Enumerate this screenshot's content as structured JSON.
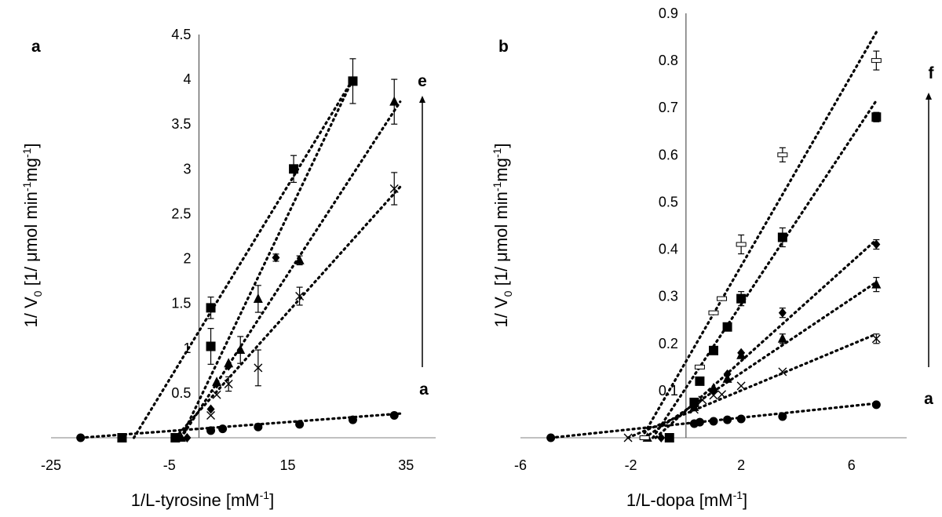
{
  "chart_data": [
    {
      "type": "scatter",
      "panel_label": "a",
      "xlabel": "1/L-tyrosine [mM",
      "xlabel_sup": "-1",
      "xlabel_end": "]",
      "ylabel_parts": [
        "1/ V",
        "0",
        " [1/ μmol min",
        "-1",
        "mg",
        "-1",
        "]"
      ],
      "xlim": [
        -25,
        40
      ],
      "ylim": [
        0,
        4.5
      ],
      "xticks": [
        -25,
        -5,
        15,
        35
      ],
      "xtick_labels": [
        "-25",
        "-5",
        "15",
        "35"
      ],
      "yticks": [
        0.5,
        1,
        1.5,
        2,
        2.5,
        3,
        3.5,
        4,
        4.5
      ],
      "ytick_labels": [
        "0.5",
        "1",
        "1.5",
        "2",
        "2.5",
        "3",
        "3.5",
        "4",
        "4.5"
      ],
      "series_start_label": "a",
      "series_end_label": "e",
      "series": [
        {
          "marker": "circle",
          "points": [
            [
              -20,
              0
            ],
            [
              2,
              0.08
            ],
            [
              4,
              0.1
            ],
            [
              10,
              0.12
            ],
            [
              17,
              0.15
            ],
            [
              26,
              0.2
            ],
            [
              33,
              0.25
            ]
          ],
          "errors": [
            0,
            0,
            0,
            0,
            0,
            0,
            0
          ],
          "line": [
            [
              -20,
              0
            ],
            [
              34,
              0.27
            ]
          ]
        },
        {
          "marker": "x",
          "points": [
            [
              -4,
              0
            ],
            [
              2,
              0.25
            ],
            [
              3,
              0.48
            ],
            [
              5,
              0.6
            ],
            [
              10,
              0.78
            ],
            [
              17,
              1.58
            ],
            [
              33,
              2.78
            ]
          ],
          "errors": [
            0,
            0,
            0,
            0.08,
            0.2,
            0.1,
            0.18
          ],
          "line": [
            [
              -4,
              0
            ],
            [
              34,
              2.8
            ]
          ]
        },
        {
          "marker": "triangle",
          "points": [
            [
              -3,
              0
            ],
            [
              3,
              0.62
            ],
            [
              5,
              0.83
            ],
            [
              7,
              0.98
            ],
            [
              10,
              1.55
            ],
            [
              17,
              1.98
            ],
            [
              33,
              3.75
            ]
          ],
          "errors": [
            0,
            0,
            0,
            0.15,
            0.15,
            0.05,
            0.25
          ],
          "line": [
            [
              -3,
              0
            ],
            [
              34,
              3.75
            ]
          ]
        },
        {
          "marker": "diamond",
          "points": [
            [
              -2,
              0
            ],
            [
              2,
              0.32
            ],
            [
              3,
              0.6
            ],
            [
              5,
              0.8
            ],
            [
              13,
              2.01
            ]
          ],
          "errors": [
            0,
            0,
            0,
            0,
            0.04
          ],
          "line": [
            [
              -3,
              0
            ],
            [
              26,
              4.0
            ]
          ]
        },
        {
          "marker": "square",
          "points": [
            [
              -13,
              0
            ],
            [
              -4,
              0
            ],
            [
              2,
              1.02
            ],
            [
              2,
              1.45
            ],
            [
              16,
              3.0
            ],
            [
              26,
              3.98
            ]
          ],
          "errors": [
            0,
            0,
            0.2,
            0.12,
            0.15,
            0.25
          ],
          "line": [
            [
              -11,
              0
            ],
            [
              26,
              4.0
            ]
          ]
        }
      ]
    },
    {
      "type": "scatter",
      "panel_label": "b",
      "xlabel": "1/L-dopa [mM",
      "xlabel_sup": "-1",
      "xlabel_end": "]",
      "ylabel_parts": [
        "1/ V",
        "0",
        " [1/ μmol min",
        "-1",
        "mg",
        "-1",
        "]"
      ],
      "xlim": [
        -6,
        8
      ],
      "ylim": [
        0,
        0.9
      ],
      "xticks": [
        -6,
        -2,
        2,
        6
      ],
      "xtick_labels": [
        "-6",
        "-2",
        "2",
        "6"
      ],
      "yticks": [
        0.1,
        0.2,
        0.3,
        0.4,
        0.5,
        0.6,
        0.7,
        0.8,
        0.9
      ],
      "ytick_labels": [
        "0.1",
        "0.2",
        "0.3",
        "0.4",
        "0.5",
        "0.6",
        "0.7",
        "0.8",
        "0.9"
      ],
      "series_start_label": "a",
      "series_end_label": "f",
      "series": [
        {
          "marker": "circle",
          "points": [
            [
              -4.9,
              0
            ],
            [
              0.3,
              0.03
            ],
            [
              0.5,
              0.033
            ],
            [
              1,
              0.035
            ],
            [
              1.5,
              0.038
            ],
            [
              2,
              0.04
            ],
            [
              3.5,
              0.045
            ],
            [
              6.9,
              0.07
            ]
          ],
          "errors": [
            0,
            0,
            0,
            0,
            0,
            0,
            0,
            0
          ],
          "line": [
            [
              -4.9,
              0
            ],
            [
              6.9,
              0.073
            ]
          ]
        },
        {
          "marker": "x",
          "points": [
            [
              -2.1,
              0
            ],
            [
              0.3,
              0.06
            ],
            [
              0.6,
              0.08
            ],
            [
              1,
              0.09
            ],
            [
              1.3,
              0.092
            ],
            [
              2,
              0.11
            ],
            [
              3.5,
              0.14
            ],
            [
              6.9,
              0.21
            ]
          ],
          "errors": [
            0,
            0,
            0,
            0,
            0,
            0,
            0,
            0.01
          ],
          "line": [
            [
              -2.1,
              0
            ],
            [
              6.9,
              0.22
            ]
          ]
        },
        {
          "marker": "triangle",
          "points": [
            [
              -1.4,
              0
            ],
            [
              0.3,
              0.065
            ],
            [
              1,
              0.105
            ],
            [
              1.5,
              0.125
            ],
            [
              2,
              0.175
            ],
            [
              3.5,
              0.21
            ],
            [
              6.9,
              0.325
            ]
          ],
          "errors": [
            0,
            0,
            0,
            0,
            0,
            0.01,
            0.015
          ],
          "line": [
            [
              -1.5,
              0
            ],
            [
              6.9,
              0.33
            ]
          ]
        },
        {
          "marker": "diamond",
          "points": [
            [
              -0.9,
              0
            ],
            [
              0.3,
              0.07
            ],
            [
              1,
              0.1
            ],
            [
              1.5,
              0.135
            ],
            [
              2,
              0.18
            ],
            [
              3.5,
              0.265
            ],
            [
              6.9,
              0.41
            ]
          ],
          "errors": [
            0,
            0,
            0,
            0,
            0,
            0.01,
            0.01
          ],
          "line": [
            [
              -1.1,
              0
            ],
            [
              6.9,
              0.42
            ]
          ]
        },
        {
          "marker": "square",
          "points": [
            [
              -0.6,
              0
            ],
            [
              0.3,
              0.075
            ],
            [
              0.5,
              0.12
            ],
            [
              1,
              0.185
            ],
            [
              1.5,
              0.235
            ],
            [
              2,
              0.295
            ],
            [
              3.5,
              0.425
            ],
            [
              6.9,
              0.68
            ]
          ],
          "errors": [
            0,
            0,
            0,
            0,
            0,
            0.015,
            0.02,
            0.01
          ],
          "line": [
            [
              -1.2,
              0
            ],
            [
              6.9,
              0.715
            ]
          ]
        },
        {
          "marker": "dash",
          "points": [
            [
              -1.5,
              0
            ],
            [
              0.5,
              0.15
            ],
            [
              1,
              0.265
            ],
            [
              1.3,
              0.295
            ],
            [
              2,
              0.41
            ],
            [
              3.5,
              0.6
            ],
            [
              6.9,
              0.8
            ]
          ],
          "errors": [
            0,
            0,
            0,
            0,
            0.02,
            0.015,
            0.02
          ],
          "line": [
            [
              -1.6,
              0
            ],
            [
              6.9,
              0.86
            ]
          ]
        }
      ]
    }
  ]
}
